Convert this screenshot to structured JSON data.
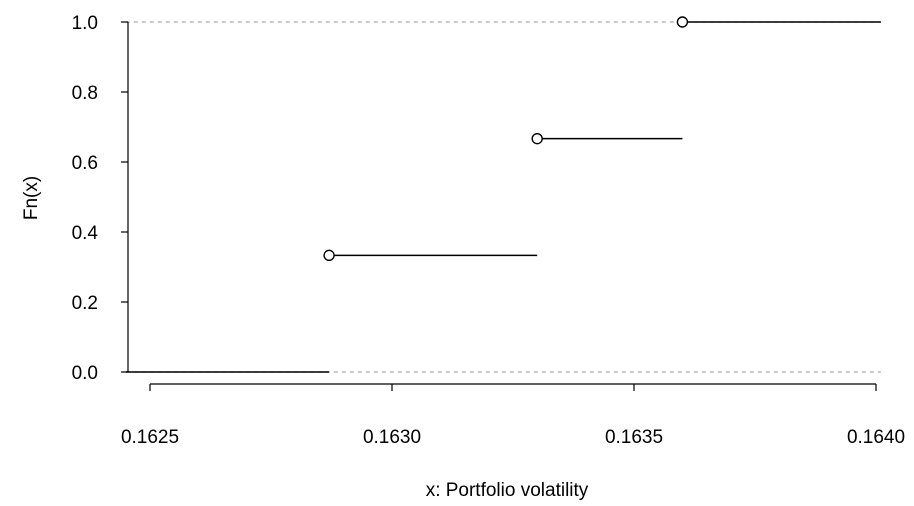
{
  "chart_data": {
    "type": "line",
    "subtype": "step",
    "title": "",
    "xlabel": "x: Portfolio volatility",
    "ylabel": "Fn(x)",
    "xlim": [
      0.16245,
      0.16401
    ],
    "ylim": [
      -0.005,
      1.005
    ],
    "x_ticks": [
      "0.1625",
      "0.1630",
      "0.1635",
      "0.1640"
    ],
    "x_tick_values": [
      0.1625,
      0.163,
      0.1635,
      0.164
    ],
    "y_ticks": [
      "0.0",
      "0.2",
      "0.4",
      "0.6",
      "0.8",
      "1.0"
    ],
    "y_tick_values": [
      0.0,
      0.2,
      0.4,
      0.6,
      0.8,
      1.0
    ],
    "reference_lines": [
      0.0,
      1.0
    ],
    "series": [
      {
        "steps": [
          {
            "x_start": 0.16245,
            "x_end": 0.16287,
            "y": 0.0,
            "point": false
          },
          {
            "x_start": 0.16287,
            "x_end": 0.1633,
            "y": 0.3333,
            "point": true
          },
          {
            "x_start": 0.1633,
            "x_end": 0.1636,
            "y": 0.6667,
            "point": true
          },
          {
            "x_start": 0.1636,
            "x_end": 0.16401,
            "y": 1.0,
            "point": true
          }
        ]
      }
    ],
    "colors": {
      "line": "#000000",
      "reference": "#aaaaaa",
      "background": "#ffffff"
    },
    "grid": false
  }
}
